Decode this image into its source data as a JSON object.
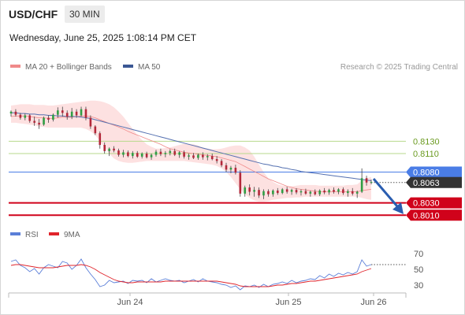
{
  "header": {
    "pair": "USD/CHF",
    "interval": "30 MIN",
    "datetime": "Wednesday, June 25, 2025 1:08:14 PM CET",
    "copyright": "Research © 2025 Trading Central"
  },
  "legend": {
    "ma20_bb": "MA 20 + Bollinger Bands",
    "ma50": "MA 50",
    "rsi": "RSI",
    "ma9": "9MA"
  },
  "colors": {
    "up": "#2f9e44",
    "down": "#b3283a",
    "ma20": "#f08a8a",
    "bollinger_fill": "#fde1e1",
    "ma50": "#5470b0",
    "rsi": "#5b7fd8",
    "rsi_ma": "#e0242b",
    "resistance": "#b7d98b",
    "pivot": "#4a7de6",
    "support": "#d0021b",
    "arrow": "#2a5db0"
  },
  "chart_data": [
    {
      "type": "candlestick",
      "title": "USD/CHF 30 MIN",
      "x_ticks": [
        "Jun 24",
        "Jun 25",
        "Jun 26"
      ],
      "ylim": [
        0.7995,
        0.8225
      ],
      "price_levels": [
        {
          "value": 0.813,
          "label": "0.8130",
          "kind": "resistance"
        },
        {
          "value": 0.811,
          "label": "0.8110",
          "kind": "resistance"
        },
        {
          "value": 0.808,
          "label": "0.8080",
          "kind": "pivot"
        },
        {
          "value": 0.8063,
          "label": "0.8063",
          "kind": "last"
        },
        {
          "value": 0.803,
          "label": "0.8030",
          "kind": "support"
        },
        {
          "value": 0.801,
          "label": "0.8010",
          "kind": "support"
        }
      ],
      "candles": [
        [
          0.8175,
          0.818,
          0.817,
          0.8178
        ],
        [
          0.8178,
          0.8182,
          0.817,
          0.8173
        ],
        [
          0.8173,
          0.8176,
          0.8165,
          0.8168
        ],
        [
          0.8168,
          0.8175,
          0.8164,
          0.8172
        ],
        [
          0.8172,
          0.8174,
          0.816,
          0.8163
        ],
        [
          0.8163,
          0.817,
          0.8155,
          0.816
        ],
        [
          0.816,
          0.8166,
          0.815,
          0.8157
        ],
        [
          0.8157,
          0.817,
          0.8155,
          0.8168
        ],
        [
          0.8168,
          0.8172,
          0.816,
          0.8165
        ],
        [
          0.8165,
          0.8175,
          0.8162,
          0.8173
        ],
        [
          0.8173,
          0.8185,
          0.8168,
          0.818
        ],
        [
          0.818,
          0.8186,
          0.817,
          0.8176
        ],
        [
          0.8176,
          0.818,
          0.8165,
          0.817
        ],
        [
          0.817,
          0.8184,
          0.8166,
          0.8178
        ],
        [
          0.8178,
          0.8182,
          0.8168,
          0.8172
        ],
        [
          0.8172,
          0.8186,
          0.817,
          0.8182
        ],
        [
          0.8182,
          0.8186,
          0.8164,
          0.8168
        ],
        [
          0.8168,
          0.8172,
          0.815,
          0.8154
        ],
        [
          0.8154,
          0.8156,
          0.814,
          0.8143
        ],
        [
          0.8143,
          0.8146,
          0.8118,
          0.8124
        ],
        [
          0.8124,
          0.8128,
          0.811,
          0.8114
        ],
        [
          0.8114,
          0.812,
          0.8106,
          0.8118
        ],
        [
          0.8118,
          0.8122,
          0.8112,
          0.8115
        ],
        [
          0.8115,
          0.8118,
          0.8105,
          0.8108
        ],
        [
          0.8108,
          0.8116,
          0.8104,
          0.8112
        ],
        [
          0.8112,
          0.8115,
          0.8104,
          0.8106
        ],
        [
          0.8106,
          0.8114,
          0.8102,
          0.8111
        ],
        [
          0.8111,
          0.8114,
          0.8103,
          0.8105
        ],
        [
          0.8105,
          0.8112,
          0.8102,
          0.811
        ],
        [
          0.811,
          0.8113,
          0.8102,
          0.8104
        ],
        [
          0.8104,
          0.811,
          0.81,
          0.8108
        ],
        [
          0.8108,
          0.8116,
          0.8105,
          0.8113
        ],
        [
          0.8113,
          0.8118,
          0.8106,
          0.8109
        ],
        [
          0.8109,
          0.8114,
          0.8104,
          0.8111
        ],
        [
          0.8111,
          0.8117,
          0.8107,
          0.8114
        ],
        [
          0.8114,
          0.8118,
          0.8106,
          0.8108
        ],
        [
          0.8108,
          0.8114,
          0.8103,
          0.8112
        ],
        [
          0.8112,
          0.8115,
          0.8102,
          0.8105
        ],
        [
          0.8105,
          0.811,
          0.81,
          0.8107
        ],
        [
          0.8107,
          0.8111,
          0.8101,
          0.8103
        ],
        [
          0.8103,
          0.811,
          0.81,
          0.8108
        ],
        [
          0.8108,
          0.8112,
          0.81,
          0.8104
        ],
        [
          0.8104,
          0.8109,
          0.8099,
          0.8106
        ],
        [
          0.8106,
          0.811,
          0.8099,
          0.8101
        ],
        [
          0.8101,
          0.8106,
          0.8094,
          0.8098
        ],
        [
          0.8098,
          0.8101,
          0.8088,
          0.8091
        ],
        [
          0.8091,
          0.8095,
          0.808,
          0.8084
        ],
        [
          0.8084,
          0.809,
          0.8078,
          0.8087
        ],
        [
          0.8087,
          0.8092,
          0.8076,
          0.8079
        ],
        [
          0.8079,
          0.8083,
          0.804,
          0.8045
        ],
        [
          0.8045,
          0.8058,
          0.804,
          0.8055
        ],
        [
          0.8055,
          0.806,
          0.8042,
          0.8048
        ],
        [
          0.8048,
          0.8056,
          0.804,
          0.8051
        ],
        [
          0.8051,
          0.8055,
          0.8038,
          0.8042
        ],
        [
          0.8042,
          0.8052,
          0.8036,
          0.8049
        ],
        [
          0.8049,
          0.8052,
          0.804,
          0.8044
        ],
        [
          0.8044,
          0.8052,
          0.804,
          0.805
        ],
        [
          0.805,
          0.8054,
          0.8043,
          0.8046
        ],
        [
          0.8046,
          0.8054,
          0.8044,
          0.8052
        ],
        [
          0.8052,
          0.8056,
          0.8045,
          0.8048
        ],
        [
          0.8048,
          0.8053,
          0.8043,
          0.8051
        ],
        [
          0.8051,
          0.8054,
          0.8044,
          0.8047
        ],
        [
          0.8047,
          0.8052,
          0.8042,
          0.8049
        ],
        [
          0.8049,
          0.8053,
          0.8043,
          0.8045
        ],
        [
          0.8045,
          0.805,
          0.804,
          0.8048
        ],
        [
          0.8048,
          0.8052,
          0.8042,
          0.8044
        ],
        [
          0.8044,
          0.8052,
          0.8041,
          0.805
        ],
        [
          0.805,
          0.8054,
          0.8044,
          0.8047
        ],
        [
          0.8047,
          0.8053,
          0.8043,
          0.8051
        ],
        [
          0.8051,
          0.8055,
          0.8045,
          0.8048
        ],
        [
          0.8048,
          0.8054,
          0.8044,
          0.8052
        ],
        [
          0.8052,
          0.8055,
          0.8043,
          0.8046
        ],
        [
          0.8046,
          0.8052,
          0.804,
          0.8049
        ],
        [
          0.8049,
          0.8054,
          0.8042,
          0.8045
        ],
        [
          0.8045,
          0.805,
          0.8038,
          0.8048
        ],
        [
          0.8048,
          0.8086,
          0.8046,
          0.807
        ],
        [
          0.807,
          0.8074,
          0.8058,
          0.8063
        ],
        [
          0.8063,
          0.8068,
          0.806,
          0.8064
        ]
      ],
      "ma20": [
        0.817,
        0.8171,
        0.8171,
        0.8171,
        0.817,
        0.8169,
        0.8168,
        0.8168,
        0.8167,
        0.8167,
        0.8168,
        0.8169,
        0.8169,
        0.8169,
        0.817,
        0.8171,
        0.8171,
        0.817,
        0.8168,
        0.8165,
        0.8162,
        0.8159,
        0.8156,
        0.8153,
        0.815,
        0.8146,
        0.8143,
        0.814,
        0.8137,
        0.8134,
        0.8131,
        0.8128,
        0.8125,
        0.8121,
        0.8118,
        0.8116,
        0.8114,
        0.8112,
        0.8111,
        0.811,
        0.8109,
        0.8108,
        0.8107,
        0.8106,
        0.8105,
        0.8103,
        0.8101,
        0.8099,
        0.8097,
        0.8093,
        0.8089,
        0.8085,
        0.8081,
        0.8077,
        0.8073,
        0.8069,
        0.8066,
        0.8063,
        0.806,
        0.8057,
        0.8055,
        0.8053,
        0.8052,
        0.8051,
        0.805,
        0.8049,
        0.8048,
        0.8048,
        0.8048,
        0.8048,
        0.8048,
        0.8048,
        0.8048,
        0.8048,
        0.8048,
        0.805,
        0.8051,
        0.8052
      ],
      "bollinger_upper": [
        0.8188,
        0.8189,
        0.819,
        0.819,
        0.819,
        0.8189,
        0.8189,
        0.8189,
        0.8188,
        0.8188,
        0.8189,
        0.819,
        0.8191,
        0.8192,
        0.8193,
        0.8194,
        0.8195,
        0.8196,
        0.8196,
        0.8195,
        0.8193,
        0.819,
        0.8185,
        0.8178,
        0.817,
        0.816,
        0.815,
        0.814,
        0.8132,
        0.8125,
        0.8121,
        0.8118,
        0.8118,
        0.8119,
        0.812,
        0.8122,
        0.8124,
        0.8126,
        0.8126,
        0.8125,
        0.8123,
        0.812,
        0.8118,
        0.8117,
        0.8117,
        0.8118,
        0.812,
        0.8122,
        0.8123,
        0.8123,
        0.812,
        0.8115,
        0.8105,
        0.8092,
        0.808,
        0.807,
        0.8064,
        0.806,
        0.8058,
        0.8057,
        0.8057,
        0.8058,
        0.8059,
        0.8059,
        0.8059,
        0.8059,
        0.8058,
        0.8058,
        0.8058,
        0.8058,
        0.8058,
        0.8058,
        0.8059,
        0.8059,
        0.806,
        0.8066,
        0.807,
        0.8072
      ],
      "bollinger_lower": [
        0.816,
        0.816,
        0.8159,
        0.8158,
        0.8157,
        0.8156,
        0.8154,
        0.8153,
        0.8152,
        0.8152,
        0.8152,
        0.8152,
        0.8152,
        0.8152,
        0.8152,
        0.8152,
        0.815,
        0.8146,
        0.814,
        0.813,
        0.812,
        0.811,
        0.8102,
        0.8098,
        0.8096,
        0.8095,
        0.8095,
        0.8096,
        0.8097,
        0.8098,
        0.8098,
        0.8098,
        0.8098,
        0.8098,
        0.8098,
        0.8098,
        0.8098,
        0.8098,
        0.8097,
        0.8096,
        0.8095,
        0.8094,
        0.8093,
        0.8092,
        0.809,
        0.8086,
        0.808,
        0.8072,
        0.8062,
        0.8052,
        0.8044,
        0.8038,
        0.8034,
        0.8032,
        0.8032,
        0.8033,
        0.8035,
        0.8036,
        0.8037,
        0.8038,
        0.8038,
        0.8039,
        0.8039,
        0.804,
        0.804,
        0.804,
        0.804,
        0.804,
        0.804,
        0.804,
        0.804,
        0.804,
        0.804,
        0.804,
        0.804,
        0.8038,
        0.8036,
        0.8035
      ],
      "ma50": [
        0.8176,
        0.8176,
        0.8175,
        0.8175,
        0.8174,
        0.8174,
        0.8173,
        0.8173,
        0.8172,
        0.8172,
        0.8171,
        0.8171,
        0.817,
        0.817,
        0.817,
        0.8169,
        0.8168,
        0.8167,
        0.8165,
        0.8163,
        0.8161,
        0.8159,
        0.8157,
        0.8155,
        0.8153,
        0.8151,
        0.8149,
        0.8147,
        0.8145,
        0.8143,
        0.8141,
        0.8139,
        0.8137,
        0.8135,
        0.8133,
        0.8131,
        0.8129,
        0.8127,
        0.8125,
        0.8123,
        0.8121,
        0.8119,
        0.8117,
        0.8115,
        0.8113,
        0.8111,
        0.8109,
        0.8107,
        0.8105,
        0.8103,
        0.8101,
        0.8099,
        0.8097,
        0.8095,
        0.8093,
        0.8092,
        0.809,
        0.8089,
        0.8087,
        0.8086,
        0.8084,
        0.8083,
        0.8081,
        0.808,
        0.8079,
        0.8078,
        0.8077,
        0.8076,
        0.8075,
        0.8074,
        0.8073,
        0.8072,
        0.8071,
        0.807,
        0.8069,
        0.8068,
        0.8067,
        0.8066
      ]
    },
    {
      "type": "line",
      "title": "RSI",
      "ylim": [
        20,
        78
      ],
      "y_ticks": [
        70,
        50,
        30
      ],
      "series": [
        {
          "name": "RSI",
          "values": [
            60,
            62,
            55,
            52,
            47,
            51,
            44,
            52,
            56,
            54,
            52,
            60,
            58,
            50,
            55,
            63,
            52,
            44,
            37,
            28,
            30,
            36,
            33,
            34,
            35,
            32,
            36,
            35,
            36,
            33,
            38,
            34,
            36,
            38,
            36,
            35,
            36,
            33,
            35,
            37,
            34,
            38,
            35,
            34,
            33,
            31,
            30,
            27,
            29,
            24,
            29,
            28,
            30,
            27,
            31,
            28,
            31,
            32,
            34,
            32,
            36,
            33,
            35,
            36,
            38,
            37,
            42,
            39,
            44,
            41,
            45,
            43,
            46,
            44,
            47,
            62,
            54,
            56
          ]
        },
        {
          "name": "9MA",
          "values": [
            55,
            56,
            56,
            55,
            54,
            53,
            52,
            52,
            52,
            52,
            53,
            54,
            55,
            55,
            55,
            56,
            55,
            53,
            50,
            46,
            43,
            40,
            37,
            35,
            34,
            33,
            33,
            34,
            34,
            34,
            34,
            34,
            34,
            35,
            35,
            35,
            35,
            35,
            35,
            35,
            35,
            35,
            35,
            35,
            35,
            34,
            33,
            32,
            31,
            29,
            28,
            28,
            28,
            28,
            28,
            28,
            29,
            30,
            30,
            31,
            32,
            32,
            33,
            34,
            35,
            35,
            36,
            37,
            38,
            39,
            40,
            41,
            42,
            43,
            44,
            47,
            49,
            51
          ]
        }
      ]
    }
  ]
}
